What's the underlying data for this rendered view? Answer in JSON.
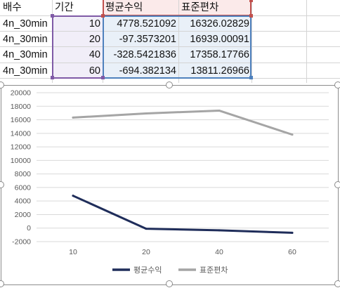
{
  "sheet": {
    "headers": [
      "배수",
      "기간",
      "평균수익",
      "표준편차"
    ],
    "rows": [
      [
        "4n_30min",
        "10",
        "4778.521092",
        "16326.02829"
      ],
      [
        "4n_30min",
        "20",
        "-97.3573201",
        "16939.00091"
      ],
      [
        "4n_30min",
        "40",
        "-328.5421836",
        "17358.17766"
      ],
      [
        "4n_30min",
        "60",
        "-694.382134",
        "13811.26966"
      ]
    ]
  },
  "colors": {
    "purple_highlight": "#7f5aa6",
    "red_highlight": "#c0504d",
    "blue_highlight": "#4f81bd",
    "series_1": "#1f2d5a",
    "series_2": "#a5a5a5"
  },
  "chart_data": {
    "type": "line",
    "categories": [
      "10",
      "20",
      "40",
      "60"
    ],
    "series": [
      {
        "name": "평균수익",
        "values": [
          4778.521092,
          -97.3573201,
          -328.5421836,
          -694.382134
        ]
      },
      {
        "name": "표준편차",
        "values": [
          16326.02829,
          16939.00091,
          17358.17766,
          13811.26966
        ]
      }
    ],
    "ylim": [
      -2000,
      20000
    ],
    "yticks": [
      "20000",
      "18000",
      "16000",
      "14000",
      "12000",
      "10000",
      "8000",
      "6000",
      "4000",
      "2000",
      "0",
      "-2000"
    ],
    "grid": true,
    "legend": "bottom"
  }
}
